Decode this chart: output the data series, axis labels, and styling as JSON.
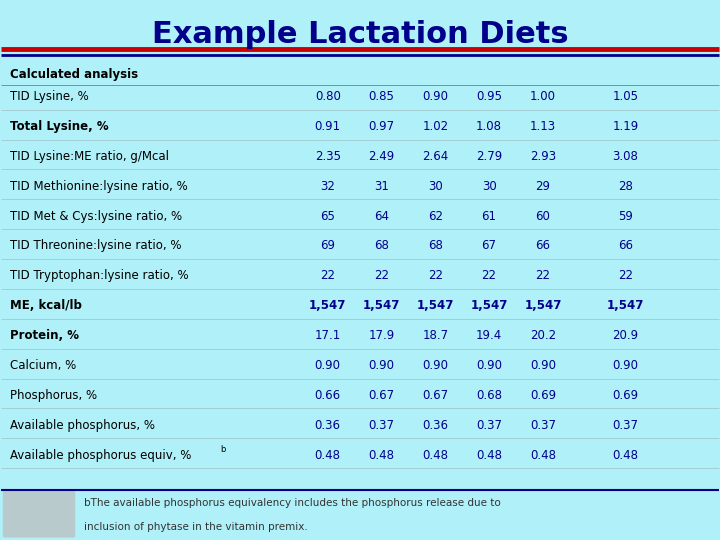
{
  "title": "Example Lactation Diets",
  "bg_color": "#b0f0f8",
  "title_color": "#00008B",
  "title_fontsize": 22,
  "header_section": "Calculated analysis",
  "rows": [
    {
      "label": "TID Lysine, %",
      "values": [
        "0.80",
        "0.85",
        "0.90",
        "0.95",
        "1.00",
        "1.05"
      ],
      "bold_label": false,
      "bold_vals": false
    },
    {
      "label": "Total Lysine, %",
      "values": [
        "0.91",
        "0.97",
        "1.02",
        "1.08",
        "1.13",
        "1.19"
      ],
      "bold_label": true,
      "bold_vals": false
    },
    {
      "label": "TID Lysine:ME ratio, g/Mcal",
      "values": [
        "2.35",
        "2.49",
        "2.64",
        "2.79",
        "2.93",
        "3.08"
      ],
      "bold_label": false,
      "bold_vals": false
    },
    {
      "label": "TID Methionine:lysine ratio, %",
      "values": [
        "32",
        "31",
        "30",
        "30",
        "29",
        "28"
      ],
      "bold_label": false,
      "bold_vals": false
    },
    {
      "label": "TID Met & Cys:lysine ratio, %",
      "values": [
        "65",
        "64",
        "62",
        "61",
        "60",
        "59"
      ],
      "bold_label": false,
      "bold_vals": false
    },
    {
      "label": "TID Threonine:lysine ratio, %",
      "values": [
        "69",
        "68",
        "68",
        "67",
        "66",
        "66"
      ],
      "bold_label": false,
      "bold_vals": false
    },
    {
      "label": "TID Tryptophan:lysine ratio, %",
      "values": [
        "22",
        "22",
        "22",
        "22",
        "22",
        "22"
      ],
      "bold_label": false,
      "bold_vals": false
    },
    {
      "label": "ME, kcal/lb",
      "values": [
        "1,547",
        "1,547",
        "1,547",
        "1,547",
        "1,547",
        "1,547"
      ],
      "bold_label": true,
      "bold_vals": true
    },
    {
      "label": "Protein, %",
      "values": [
        "17.1",
        "17.9",
        "18.7",
        "19.4",
        "20.2",
        "20.9"
      ],
      "bold_label": true,
      "bold_vals": false
    },
    {
      "label": "Calcium, %",
      "values": [
        "0.90",
        "0.90",
        "0.90",
        "0.90",
        "0.90",
        "0.90"
      ],
      "bold_label": false,
      "bold_vals": false
    },
    {
      "label": "Phosphorus, %",
      "values": [
        "0.66",
        "0.67",
        "0.67",
        "0.68",
        "0.69",
        "0.69"
      ],
      "bold_label": false,
      "bold_vals": false
    },
    {
      "label": "Available phosphorus, %",
      "values": [
        "0.36",
        "0.37",
        "0.36",
        "0.37",
        "0.37",
        "0.37"
      ],
      "bold_label": false,
      "bold_vals": false
    },
    {
      "label": "Available phosphorus equiv, %b",
      "values": [
        "0.48",
        "0.48",
        "0.48",
        "0.48",
        "0.48",
        "0.48"
      ],
      "bold_label": false,
      "bold_vals": false
    }
  ],
  "footnote1": "bThe available phosphorus equivalency includes the phosphorus release due to",
  "footnote2": "inclusion of phytase in the vitamin premix.",
  "val_color": "#00008B",
  "label_color": "#000000"
}
